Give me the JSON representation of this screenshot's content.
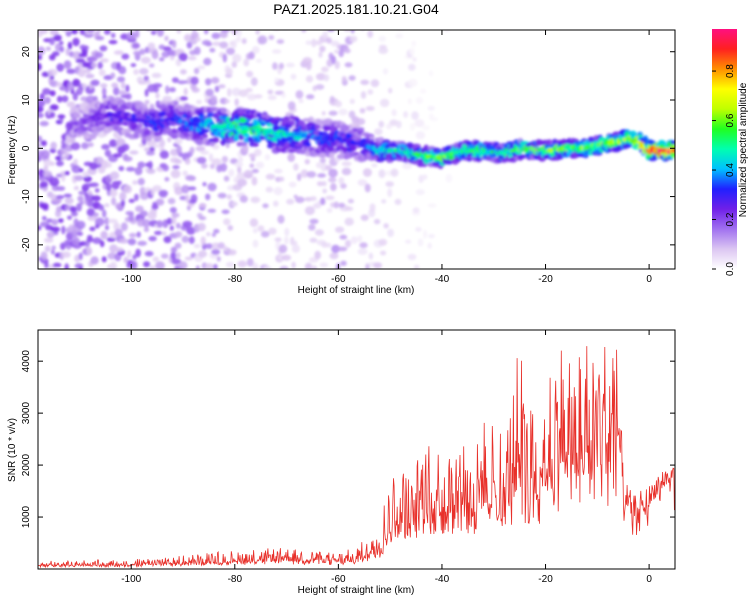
{
  "title": "PAZ1.2025.181.10.21.G04",
  "chart_data": [
    {
      "type": "heatmap",
      "xlabel": "Height of straight line (km)",
      "ylabel": "Frequency (Hz)",
      "xlim": [
        -118,
        5
      ],
      "ylim": [
        -25,
        24.5
      ],
      "xticks": [
        -100,
        -80,
        -60,
        -40,
        -20,
        0
      ],
      "yticks": [
        -20,
        -10,
        0,
        10,
        20
      ],
      "colorbar": {
        "label": "Normalized spectral amplitude",
        "range": [
          0,
          0.97
        ],
        "ticks": [
          0.0,
          0.2,
          0.4,
          0.6,
          0.8
        ],
        "colormap": [
          "#ffffff",
          "#dcc6f2",
          "#a070f0",
          "#7020e8",
          "#2020ff",
          "#00c0ff",
          "#00ffb0",
          "#20ff20",
          "#c0ff00",
          "#ffff00",
          "#ff9000",
          "#ff2020",
          "#ff1080"
        ]
      },
      "ridge": {
        "x": [
          -112,
          -108,
          -104,
          -100,
          -96,
          -92,
          -88,
          -84,
          -80,
          -76,
          -72,
          -68,
          -64,
          -60,
          -56,
          -52,
          -48,
          -44,
          -40,
          -36,
          -32,
          -28,
          -24,
          -20,
          -16,
          -12,
          -8,
          -4,
          -2,
          0,
          2,
          4
        ],
        "freq": [
          5,
          5.5,
          7,
          6,
          5.5,
          6,
          5,
          4.5,
          4.5,
          4,
          3,
          3,
          2,
          2,
          1,
          -0.5,
          -0.5,
          -1.5,
          -2,
          -0.5,
          -0.5,
          -1,
          0,
          -0.5,
          0,
          0,
          1,
          2,
          1.5,
          -0.5,
          -0.5,
          -0.5
        ],
        "amplitude": [
          0.2,
          0.22,
          0.28,
          0.3,
          0.32,
          0.34,
          0.36,
          0.45,
          0.55,
          0.55,
          0.5,
          0.45,
          0.35,
          0.35,
          0.3,
          0.45,
          0.5,
          0.55,
          0.6,
          0.55,
          0.55,
          0.55,
          0.6,
          0.6,
          0.6,
          0.6,
          0.6,
          0.65,
          0.75,
          0.85,
          0.95,
          0.95
        ]
      },
      "noise_level": {
        "x": [
          -118,
          -110,
          -100,
          -90,
          -80,
          -70,
          -60,
          -55,
          -50,
          -45,
          -40
        ],
        "value": [
          0.12,
          0.12,
          0.1,
          0.1,
          0.06,
          0.05,
          0.07,
          0.05,
          0.03,
          0.02,
          0.01
        ]
      }
    },
    {
      "type": "line",
      "xlabel": "Height of straight line (km)",
      "ylabel": "SNR (10 * v/v)",
      "xlim": [
        -118,
        5
      ],
      "ylim": [
        0,
        4600
      ],
      "xticks": [
        -100,
        -80,
        -60,
        -40,
        -20,
        0
      ],
      "yticks": [
        1000,
        2000,
        3000,
        4000
      ],
      "color": "#e8302a",
      "envelope": {
        "x": [
          -118,
          -100,
          -90,
          -80,
          -70,
          -60,
          -56,
          -54,
          -52,
          -50,
          -48,
          -46,
          -44,
          -42,
          -40,
          -38,
          -36,
          -34,
          -32,
          -30,
          -28,
          -26,
          -25,
          -24,
          -22,
          -20,
          -19,
          -18,
          -16,
          -14,
          -13,
          -12,
          -10,
          -8,
          -7,
          -6,
          -5,
          -4,
          -3,
          -2,
          0,
          2,
          4,
          5
        ],
        "base": [
          60,
          70,
          100,
          130,
          150,
          120,
          150,
          250,
          350,
          700,
          900,
          800,
          1100,
          1100,
          1000,
          1000,
          1200,
          900,
          1200,
          1300,
          1000,
          1400,
          1600,
          1300,
          1200,
          1600,
          2000,
          1800,
          2000,
          1600,
          2000,
          1800,
          2000,
          1800,
          2200,
          2400,
          1300,
          1100,
          1000,
          1100,
          1200,
          1500,
          1650,
          1700
        ],
        "spread": [
          80,
          100,
          140,
          200,
          220,
          160,
          250,
          400,
          600,
          900,
          900,
          900,
          1000,
          1100,
          1200,
          1100,
          1300,
          1100,
          1400,
          1600,
          1400,
          1800,
          2500,
          1800,
          1600,
          2000,
          2400,
          2200,
          2200,
          2000,
          2400,
          2300,
          2200,
          2300,
          2200,
          1600,
          500,
          400,
          350,
          350,
          350,
          400,
          300,
          300
        ]
      }
    }
  ]
}
